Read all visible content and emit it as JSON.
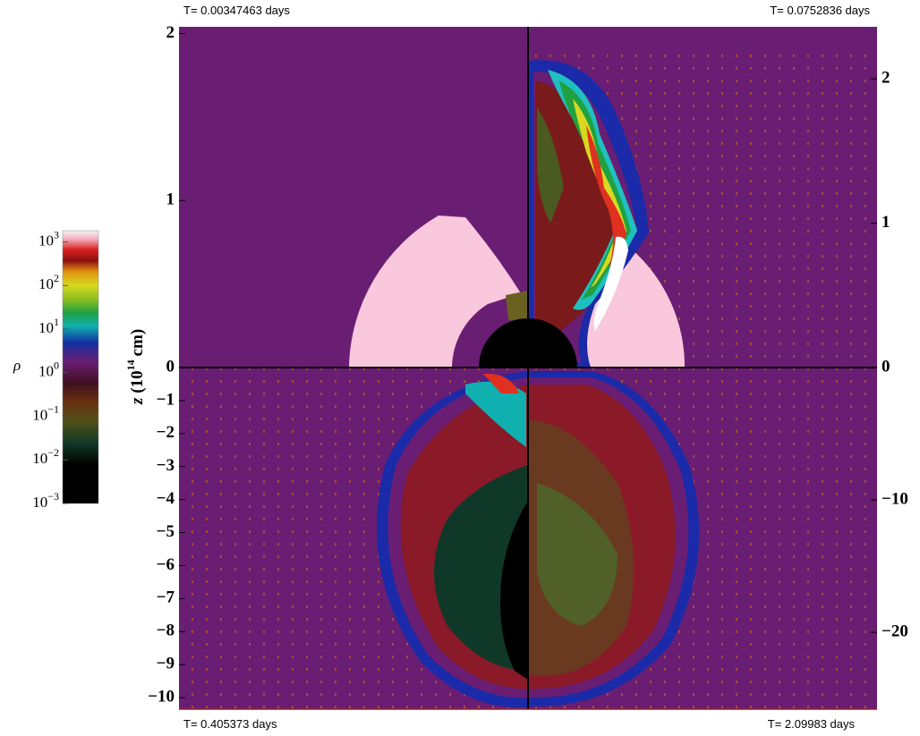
{
  "panels": [
    {
      "time": "T= 0.00347463 days"
    },
    {
      "time": "T= 0.0752836 days"
    },
    {
      "time": "T= 0.405373 days"
    },
    {
      "time": "T= 2.09983 days"
    }
  ],
  "left_axis": {
    "label": {
      "var": "z",
      "open": "(10",
      "sup": "14",
      "unit": "cm)"
    },
    "upper_lim": [
      0,
      2.04
    ],
    "upper_ticks": [
      0,
      1,
      2
    ],
    "lower_lim": [
      -10.35,
      0
    ],
    "lower_ticks": [
      {
        "value": -1,
        "label": "−1"
      },
      {
        "value": -2,
        "label": "−2"
      },
      {
        "value": -3,
        "label": "−3"
      },
      {
        "value": -4,
        "label": "−4"
      },
      {
        "value": -5,
        "label": "−5"
      },
      {
        "value": -6,
        "label": "−6"
      },
      {
        "value": -7,
        "label": "−7"
      },
      {
        "value": -8,
        "label": "−8"
      },
      {
        "value": -9,
        "label": "−9"
      },
      {
        "value": -10,
        "label": "−10"
      }
    ]
  },
  "right_axis": {
    "upper_lim": [
      0,
      2.36
    ],
    "upper_ticks": [
      0,
      1,
      2
    ],
    "lower_lim": [
      -25.8,
      0
    ],
    "lower_ticks": [
      {
        "value": -10,
        "label": "−10"
      },
      {
        "value": -20,
        "label": "−20"
      }
    ]
  },
  "colorbar": {
    "label": "ρ",
    "log": true,
    "lim": [
      0.001,
      1800
    ],
    "ticks": [
      {
        "value": 1000,
        "base": "10",
        "exponent": "3"
      },
      {
        "value": 100,
        "base": "10",
        "exponent": "2"
      },
      {
        "value": 10,
        "base": "10",
        "exponent": "1"
      },
      {
        "value": 1,
        "base": "10",
        "exponent": "0"
      },
      {
        "value": 0.1,
        "base": "10",
        "exponent": "−1"
      },
      {
        "value": 0.01,
        "base": "10",
        "exponent": "−2"
      },
      {
        "value": 0.001,
        "base": "10",
        "exponent": "−3"
      }
    ]
  }
}
